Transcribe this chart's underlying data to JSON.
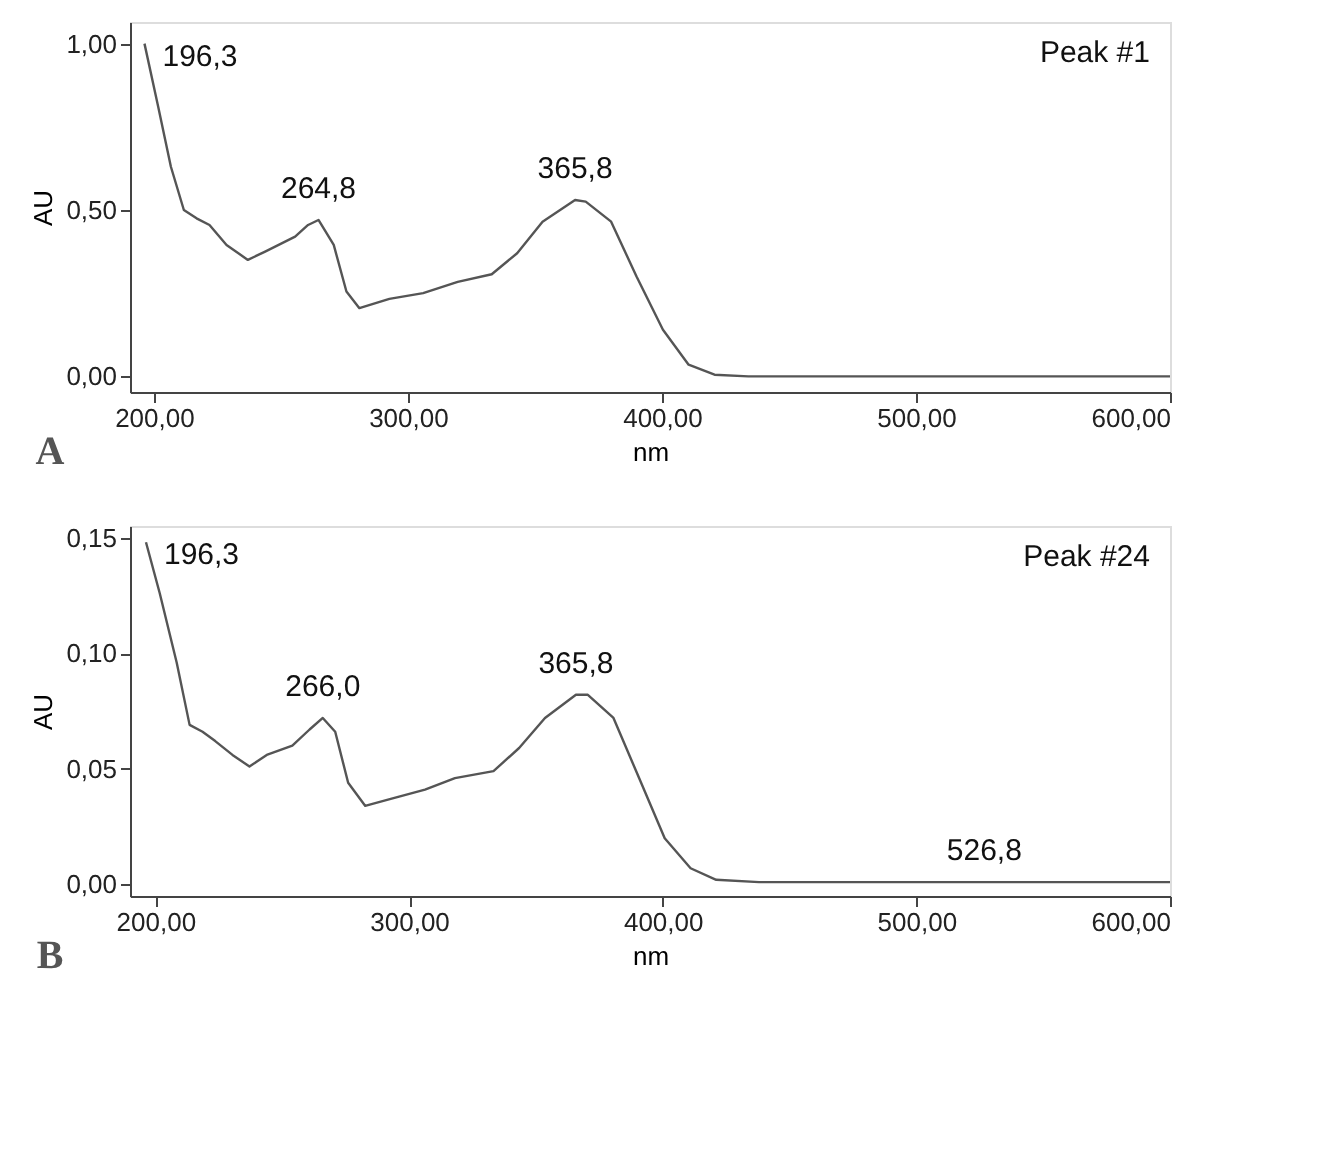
{
  "chart_data": [
    {
      "type": "line",
      "xlabel": "nm",
      "ylabel": "AU",
      "xlim": [
        190.6,
        600
      ],
      "ylim": [
        -0.047,
        1.065
      ],
      "xticks": [
        {
          "value": 200,
          "label": "200,00"
        },
        {
          "value": 300,
          "label": "300,00"
        },
        {
          "value": 400,
          "label": "400,00"
        },
        {
          "value": 500,
          "label": "500,00"
        },
        {
          "value": 600,
          "label": "600,00"
        }
      ],
      "yticks": [
        {
          "value": 0,
          "label": "0,00"
        },
        {
          "value": 0.5,
          "label": "0,50"
        },
        {
          "value": 1,
          "label": "1,00"
        }
      ],
      "grid": false,
      "marker": "none",
      "line_style": "solid",
      "series": [
        {
          "color": "#555555",
          "x": [
            196.3,
            201.7,
            206.7,
            211.8,
            216.8,
            221.9,
            228.6,
            237,
            243.8,
            255.6,
            260.7,
            264.8,
            270.8,
            275.8,
            280.9,
            292.7,
            306,
            319.6,
            333,
            343,
            353,
            365.8,
            370,
            380,
            390,
            400.4,
            410.5,
            420.7,
            434,
            600
          ],
          "values": [
            1.0,
            0.81,
            0.63,
            0.5,
            0.475,
            0.455,
            0.395,
            0.35,
            0.375,
            0.42,
            0.455,
            0.47,
            0.395,
            0.255,
            0.205,
            0.233,
            0.25,
            0.284,
            0.307,
            0.37,
            0.465,
            0.53,
            0.525,
            0.465,
            0.3,
            0.14,
            0.035,
            0.005,
            0.0,
            0.0
          ]
        }
      ],
      "annotations": [
        "Peak #1",
        "A",
        {
          "text": "196,3",
          "x": 196.3,
          "y": 1.0
        },
        {
          "text": "264,8",
          "x": 264.8,
          "y": 0.47
        },
        {
          "text": "365,8",
          "x": 365.8,
          "y": 0.53
        }
      ]
    },
    {
      "type": "line",
      "xlabel": "nm",
      "ylabel": "AU",
      "xlim": [
        190,
        600
      ],
      "ylim": [
        -0.005,
        0.155
      ],
      "xticks": [
        {
          "value": 200,
          "label": "200,00"
        },
        {
          "value": 300,
          "label": "300,00"
        },
        {
          "value": 400,
          "label": "400,00"
        },
        {
          "value": 500,
          "label": "500,00"
        },
        {
          "value": 600,
          "label": "600,00"
        }
      ],
      "yticks": [
        {
          "value": 0,
          "label": "0,00"
        },
        {
          "value": 0.05,
          "label": "0,05"
        },
        {
          "value": 0.1,
          "label": "0,10"
        },
        {
          "value": 0.15,
          "label": "0,15"
        }
      ],
      "grid": false,
      "marker": "none",
      "line_style": "solid",
      "series": [
        {
          "color": "#555555",
          "x": [
            196.3,
            201.7,
            208.4,
            213.5,
            218.6,
            223.6,
            230.4,
            237.1,
            243.9,
            254,
            260.8,
            266.0,
            270.9,
            276,
            282.7,
            292.8,
            306.3,
            318.1,
            333.3,
            343.4,
            353.6,
            365.8,
            370.5,
            380.6,
            390.7,
            400.8,
            411,
            421.1,
            438,
            526.8,
            600
          ],
          "values": [
            0.148,
            0.126,
            0.096,
            0.069,
            0.066,
            0.062,
            0.056,
            0.051,
            0.056,
            0.06,
            0.067,
            0.072,
            0.066,
            0.044,
            0.034,
            0.037,
            0.041,
            0.046,
            0.049,
            0.059,
            0.072,
            0.082,
            0.082,
            0.072,
            0.046,
            0.02,
            0.007,
            0.002,
            0.001,
            0.001,
            0.001
          ]
        }
      ],
      "annotations": [
        "Peak #24",
        "B",
        {
          "text": "196,3",
          "x": 196.3,
          "y": 0.148
        },
        {
          "text": "266,0",
          "x": 266.0,
          "y": 0.072
        },
        {
          "text": "365,8",
          "x": 365.8,
          "y": 0.082
        },
        {
          "text": "526,8",
          "x": 526.8,
          "y": 0.001
        }
      ]
    }
  ]
}
